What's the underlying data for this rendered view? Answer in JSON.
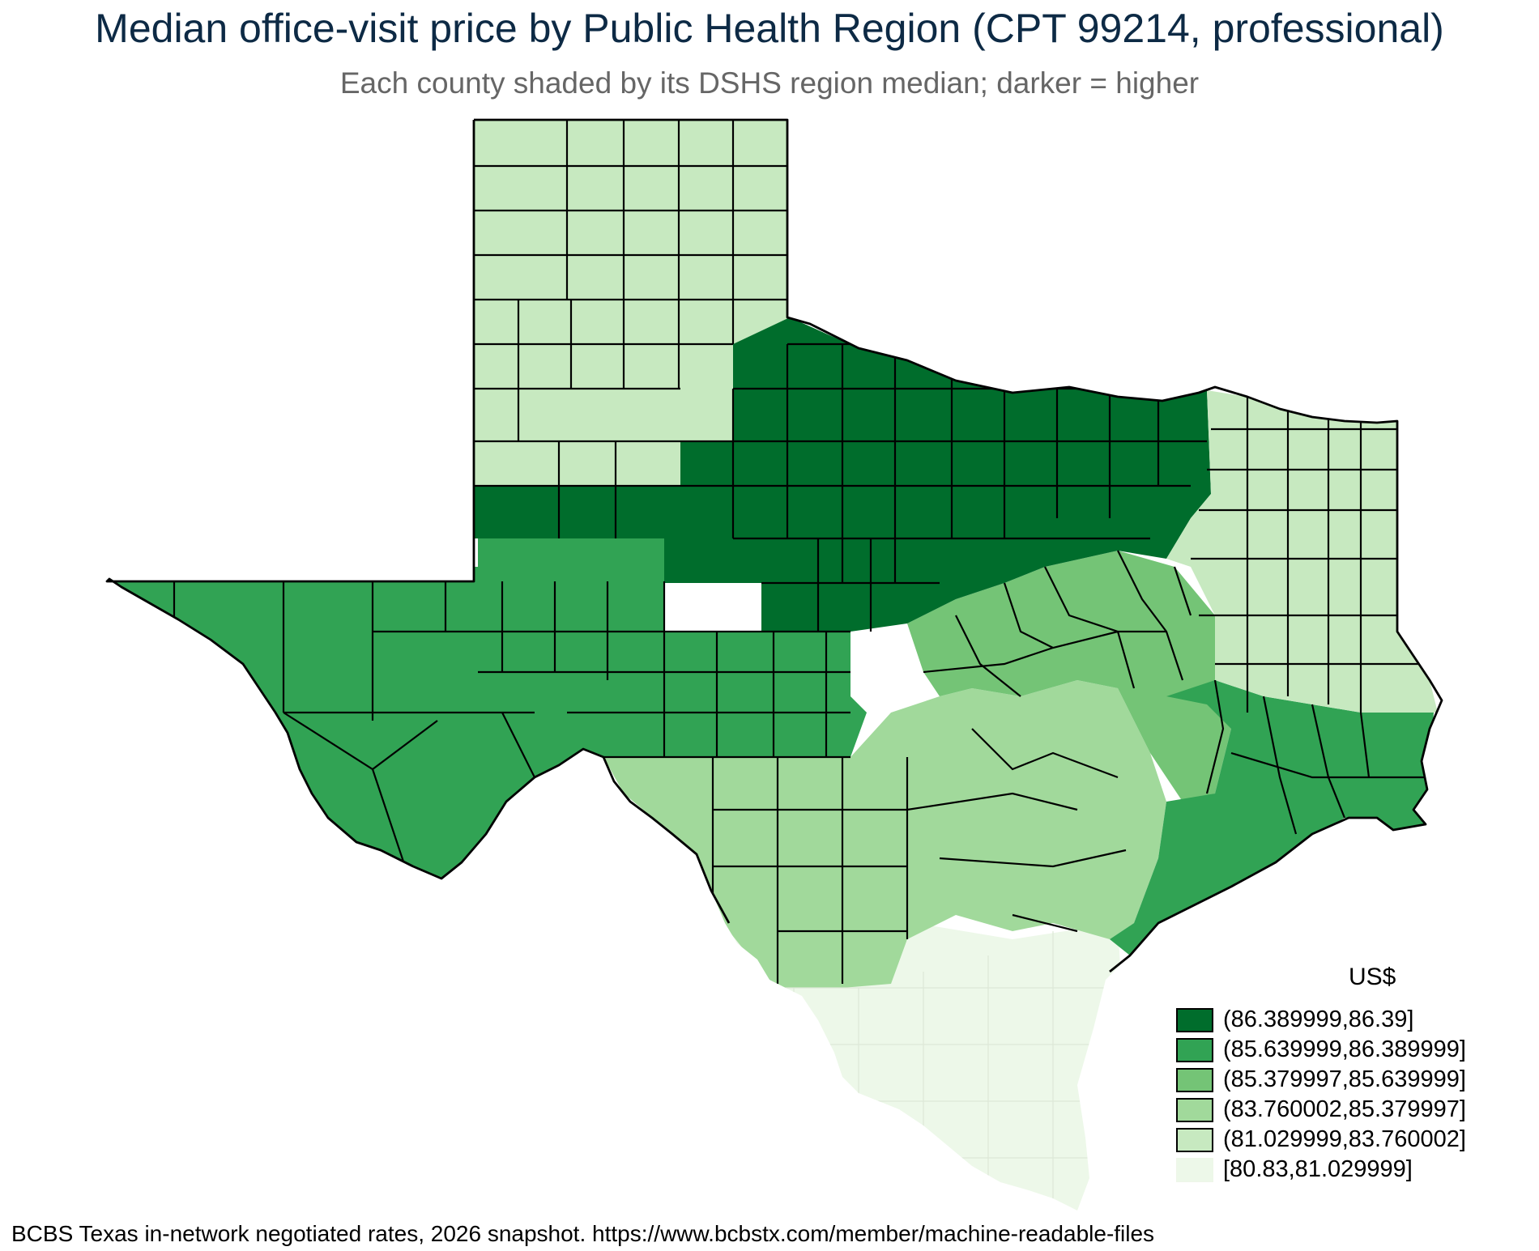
{
  "title": "Median office-visit price by Public Health Region (CPT 99214, professional)",
  "subtitle": "Each county shaded by its DSHS region median; darker = higher",
  "legend": {
    "title": "US$",
    "items": [
      {
        "label": "(86.389999,86.39]",
        "color": "#006d2c"
      },
      {
        "label": "(85.639999,86.389999]",
        "color": "#31a354"
      },
      {
        "label": "(85.379997,85.639999]",
        "color": "#74c476"
      },
      {
        "label": "(83.760002,85.379997]",
        "color": "#a1d99b"
      },
      {
        "label": "(81.029999,83.760002]",
        "color": "#c7e9c0"
      },
      {
        "label": "[80.83,81.029999]",
        "color": "#edf8e9"
      }
    ]
  },
  "source": "BCBS Texas in-network negotiated rates, 2026 snapshot. https://www.bcbstx.com/member/machine-readable-files"
}
